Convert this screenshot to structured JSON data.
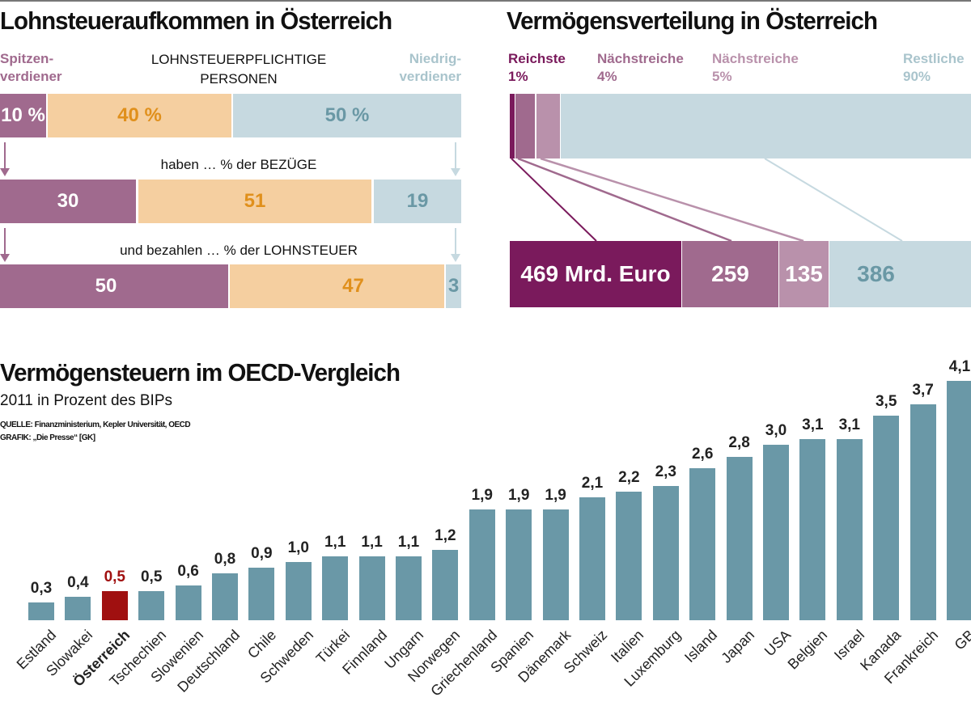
{
  "colors": {
    "top": "#a06a8e",
    "middle": "#f5cfa0",
    "low": "#c6d9e0",
    "wealth_1": "#7a1a5c",
    "wealth_4": "#a06a8e",
    "wealth_5": "#b991ab",
    "wealth_90": "#c6d9e0",
    "oecd_bar": "#6a98a7",
    "oecd_highlight": "#a01010"
  },
  "lohnsteuer": {
    "title": "Lohnsteueraufkommen in Österreich",
    "left_label": [
      "Spitzen-",
      "verdiener"
    ],
    "center_label": [
      "LOHNSTEUERPFLICHTIGE",
      "PERSONEN"
    ],
    "right_label": [
      "Niedrig-",
      "verdiener"
    ],
    "row1": [
      "10 %",
      "40 %",
      "50 %"
    ],
    "caption2": "haben … % der BEZÜGE",
    "row2": [
      "30",
      "51",
      "19"
    ],
    "caption3": "und bezahlen … % der LOHNSTEUER",
    "row3": [
      "50",
      "47",
      "3"
    ]
  },
  "vermoegen": {
    "title": "Vermögensverteilung in Österreich",
    "groups": [
      {
        "label": "Reichste",
        "share": "1%",
        "value": "469 Mrd. Euro"
      },
      {
        "label": "Nächstreiche",
        "share": "4%",
        "value": "259"
      },
      {
        "label": "Nächstreiche",
        "share": "5%",
        "value": "135"
      },
      {
        "label": "Restliche",
        "share": "90%",
        "value": "386"
      }
    ]
  },
  "oecd": {
    "title": "Vermögensteuern im OECD-Vergleich",
    "subtitle": "2011 in Prozent des BIPs",
    "source": "QUELLE: Finanzministerium, Kepler Universität, OECD",
    "credit": "GRAFIK: „Die Presse“ [GK]"
  },
  "chart_data": {
    "type": "bar",
    "title": "Vermögensteuern im OECD-Vergleich",
    "subtitle": "2011 in Prozent des BIPs",
    "categories": [
      "Estland",
      "Slowakei",
      "Österreich",
      "Tschechien",
      "Slowenien",
      "Deutschland",
      "Chile",
      "Schweden",
      "Türkei",
      "Finnland",
      "Ungarn",
      "Norwegen",
      "Griechenland",
      "Spanien",
      "Dänemark",
      "Schweiz",
      "Italien",
      "Luxemburg",
      "Island",
      "Japan",
      "USA",
      "Belgien",
      "Israel",
      "Kanada",
      "Frankreich",
      "GB"
    ],
    "values": [
      0.3,
      0.4,
      0.5,
      0.5,
      0.6,
      0.8,
      0.9,
      1.0,
      1.1,
      1.1,
      1.1,
      1.2,
      1.9,
      1.9,
      1.9,
      2.1,
      2.2,
      2.3,
      2.6,
      2.8,
      3.0,
      3.1,
      3.1,
      3.5,
      3.7,
      4.1
    ],
    "data_labels": [
      "0,3",
      "0,4",
      "0,5",
      "0,5",
      "0,6",
      "0,8",
      "0,9",
      "1,0",
      "1,1",
      "1,1",
      "1,1",
      "1,2",
      "1,9",
      "1,9",
      "1,9",
      "2,1",
      "2,2",
      "2,3",
      "2,6",
      "2,8",
      "3,0",
      "3,1",
      "3,1",
      "3,5",
      "3,7",
      "4,1"
    ],
    "highlight": "Österreich",
    "ylim": [
      0,
      4.1
    ],
    "grid": false
  }
}
